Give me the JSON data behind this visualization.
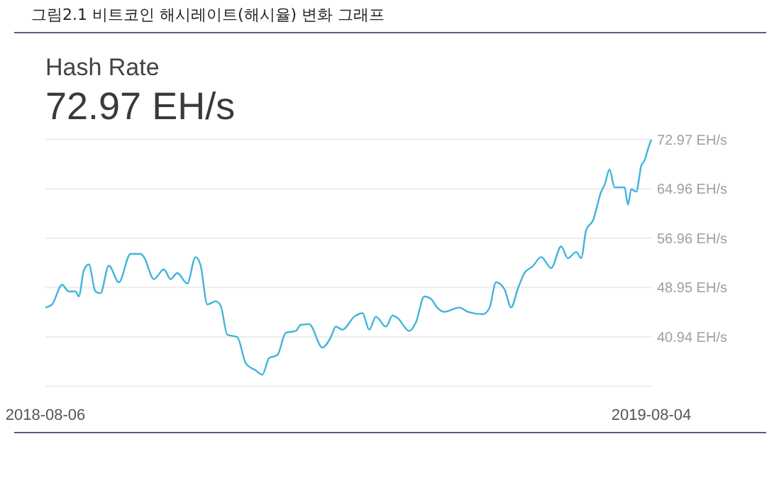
{
  "chart_data": {
    "type": "line",
    "title": "그림2.1 비트코인 해시레이트(해시율) 변화 그래프",
    "subtitle": "Hash Rate",
    "annotations": [
      "72.97 EH/s"
    ],
    "x": [
      "2018-08-06",
      "2018-08-10",
      "2018-08-16",
      "2018-08-20",
      "2018-08-24",
      "2018-08-26",
      "2018-08-29",
      "2018-09-01",
      "2018-09-05",
      "2018-09-08",
      "2018-09-13",
      "2018-09-19",
      "2018-09-26",
      "2018-10-02",
      "2018-10-04",
      "2018-10-10",
      "2018-10-16",
      "2018-10-20",
      "2018-10-24",
      "2018-10-30",
      "2018-11-04",
      "2018-11-07",
      "2018-11-11",
      "2018-11-16",
      "2018-11-19",
      "2018-11-23",
      "2018-11-29",
      "2018-12-04",
      "2018-12-10",
      "2018-12-14",
      "2018-12-18",
      "2018-12-23",
      "2018-12-28",
      "2019-01-03",
      "2019-01-06",
      "2019-01-11",
      "2019-01-19",
      "2019-01-24",
      "2019-01-27",
      "2019-01-31",
      "2019-02-07",
      "2019-02-12",
      "2019-02-16",
      "2019-02-20",
      "2019-02-26",
      "2019-03-02",
      "2019-03-05",
      "2019-03-12",
      "2019-03-16",
      "2019-03-21",
      "2019-03-25",
      "2019-03-29",
      "2019-04-02",
      "2019-04-11",
      "2019-04-16",
      "2019-04-25",
      "2019-04-29",
      "2019-05-03",
      "2019-05-08",
      "2019-05-12",
      "2019-05-16",
      "2019-05-20",
      "2019-05-25",
      "2019-05-30",
      "2019-06-05",
      "2019-06-11",
      "2019-06-15",
      "2019-06-20",
      "2019-06-23",
      "2019-06-26",
      "2019-06-30",
      "2019-07-05",
      "2019-07-07",
      "2019-07-10",
      "2019-07-13",
      "2019-07-19",
      "2019-07-21",
      "2019-07-23",
      "2019-07-26",
      "2019-07-29",
      "2019-07-31",
      "2019-08-02",
      "2019-08-04"
    ],
    "series": [
      {
        "color": "#3fb4dc",
        "values": [
          45.7,
          46.2,
          49.4,
          48.3,
          48.3,
          47.5,
          51.7,
          52.7,
          48.3,
          48.0,
          52.5,
          49.8,
          54.4,
          54.4,
          53.9,
          50.3,
          51.9,
          50.3,
          51.3,
          49.6,
          53.9,
          52.5,
          46.2,
          46.7,
          46.0,
          41.3,
          40.9,
          36.7,
          35.5,
          34.8,
          37.5,
          38.0,
          41.6,
          41.9,
          42.9,
          43.0,
          39.2,
          40.9,
          42.6,
          42.1,
          44.2,
          44.8,
          42.1,
          44.2,
          42.6,
          44.4,
          44.0,
          41.9,
          43.3,
          47.5,
          47.1,
          45.6,
          45.0,
          45.7,
          45.0,
          44.6,
          45.6,
          49.8,
          48.7,
          45.7,
          48.7,
          51.3,
          52.4,
          53.9,
          52.1,
          55.6,
          53.7,
          54.7,
          53.7,
          58.3,
          59.8,
          64.5,
          65.6,
          68.1,
          65.2,
          65.2,
          62.4,
          64.9,
          64.5,
          68.7,
          69.6,
          71.4,
          72.97
        ]
      }
    ],
    "xlim": [
      "2018-08-06",
      "2019-08-04"
    ],
    "xticks": [
      "2018-08-06",
      "2019-08-04"
    ],
    "ylim": [
      32.93,
      72.97
    ],
    "yticks": [
      {
        "value": 32.93,
        "label": null
      },
      {
        "value": 40.94,
        "label": "40.94 EH/s"
      },
      {
        "value": 48.95,
        "label": "48.95 EH/s"
      },
      {
        "value": 56.96,
        "label": "56.96 EH/s"
      },
      {
        "value": 64.96,
        "label": "64.96 EH/s"
      },
      {
        "value": 72.97,
        "label": "72.97 EH/s"
      }
    ],
    "grid": "y",
    "marker": "none",
    "line_style": "solid"
  }
}
